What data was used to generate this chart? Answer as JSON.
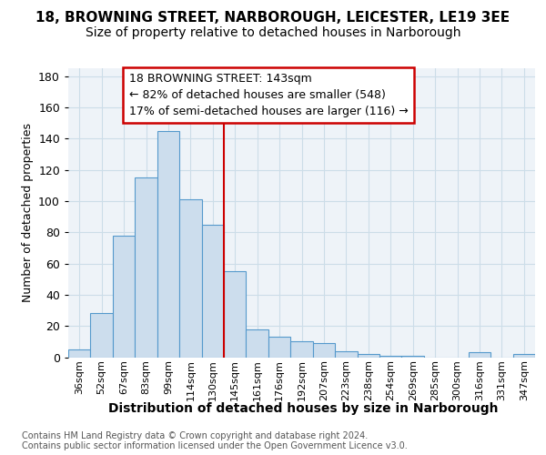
{
  "title_line1": "18, BROWNING STREET, NARBOROUGH, LEICESTER, LE19 3EE",
  "title_line2": "Size of property relative to detached houses in Narborough",
  "xlabel": "Distribution of detached houses by size in Narborough",
  "ylabel": "Number of detached properties",
  "bar_labels": [
    "36sqm",
    "52sqm",
    "67sqm",
    "83sqm",
    "99sqm",
    "114sqm",
    "130sqm",
    "145sqm",
    "161sqm",
    "176sqm",
    "192sqm",
    "207sqm",
    "223sqm",
    "238sqm",
    "254sqm",
    "269sqm",
    "285sqm",
    "300sqm",
    "316sqm",
    "331sqm",
    "347sqm"
  ],
  "bar_values": [
    5,
    28,
    78,
    115,
    145,
    101,
    85,
    55,
    18,
    13,
    10,
    9,
    4,
    2,
    1,
    1,
    0,
    0,
    3,
    0,
    2
  ],
  "bar_color": "#ccdded",
  "bar_edge_color": "#5599cc",
  "vline_x_index": 7,
  "vline_color": "#cc0000",
  "annotation_text": "18 BROWNING STREET: 143sqm\n← 82% of detached houses are smaller (548)\n17% of semi-detached houses are larger (116) →",
  "annotation_box_edgecolor": "#cc0000",
  "ylim_max": 185,
  "yticks": [
    0,
    20,
    40,
    60,
    80,
    100,
    120,
    140,
    160,
    180
  ],
  "grid_color": "#ccdde8",
  "bg_color": "#eef3f8",
  "title_fontsize": 11,
  "subtitle_fontsize": 10,
  "ylabel_fontsize": 9,
  "xlabel_fontsize": 10,
  "ytick_fontsize": 9,
  "xtick_fontsize": 8,
  "annotation_fontsize": 9,
  "footnote_fontsize": 7,
  "footnote1": "Contains HM Land Registry data © Crown copyright and database right 2024.",
  "footnote2": "Contains public sector information licensed under the Open Government Licence v3.0."
}
